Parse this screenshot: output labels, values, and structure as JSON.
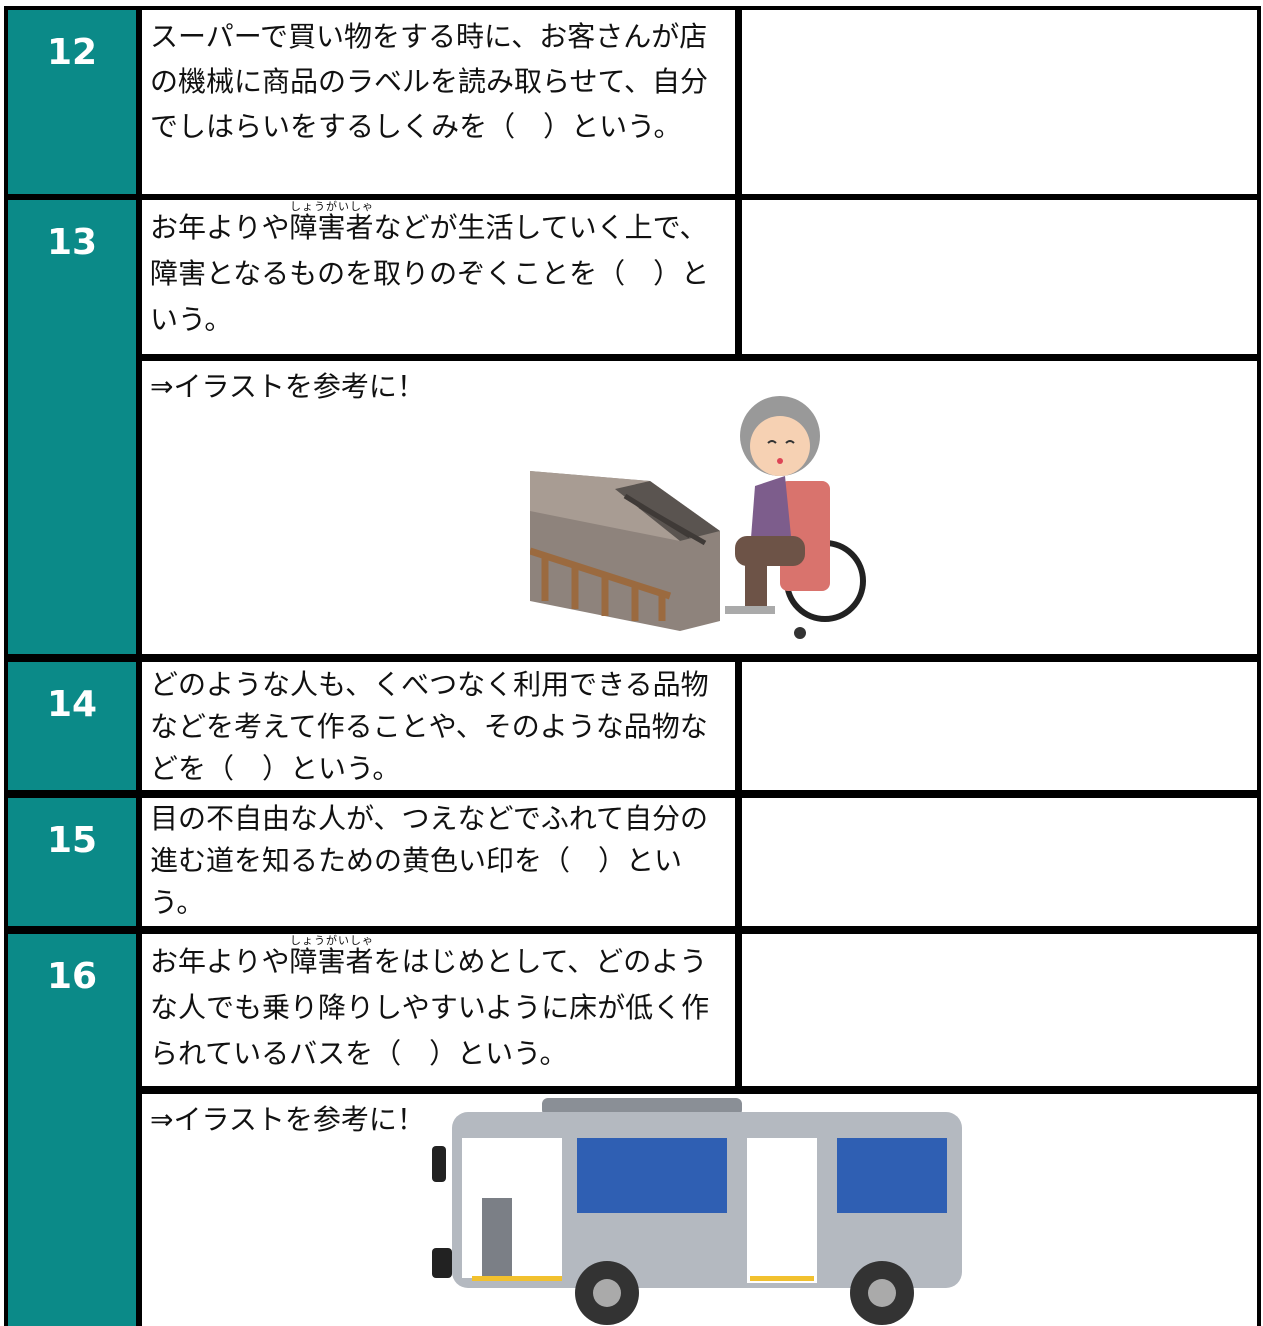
{
  "rows": [
    {
      "number": "12",
      "question": "スーパーで買い物をする時に、お客さんが店の機械に商品のラベルを読み取らせて、自分でしはらいをするしくみを（　）という。"
    },
    {
      "number": "13",
      "question": {
        "before": "お年よりや",
        "base": "障害者",
        "reading": "しょうがいしゃ",
        "after": "などが生活していく上で、障害となるものを取りのぞくことを（　）という。"
      },
      "note": "⇒イラストを参考に！"
    },
    {
      "number": "14",
      "question": "どのような人も、くべつなく利用できる品物などを考えて作ることや、そのような品物などを（　）という。"
    },
    {
      "number": "15",
      "question": "目の不自由な人が、つえなどでふれて自分の進む道を知るための黄色い印を（　）という。"
    },
    {
      "number": "16",
      "question": {
        "before": "お年よりや",
        "base": "障害者",
        "reading": "しょうがいしゃ",
        "after": "をはじめとして、どのような人でも乗り降りしやすいように床が低く作られているバスを（　）という。"
      },
      "note": "⇒イラストを参考に！"
    }
  ]
}
